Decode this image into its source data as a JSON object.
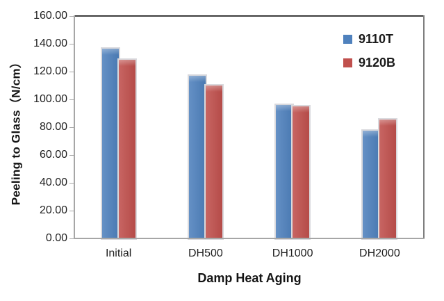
{
  "chart_data": {
    "type": "bar",
    "title": "",
    "categories": [
      "Initial",
      "DH500",
      "DH1000",
      "DH2000"
    ],
    "series": [
      {
        "name": "9110T",
        "color": "#4f81bd",
        "values": [
          136.5,
          117.0,
          96.0,
          77.5
        ]
      },
      {
        "name": "9120B",
        "color": "#c0504d",
        "values": [
          128.5,
          110.0,
          95.0,
          85.5
        ]
      }
    ],
    "xlabel": "Damp Heat Aging",
    "ylabel": "Peeling to Glass（N/cm）",
    "ylim": [
      0,
      160
    ],
    "ytick_step": 20,
    "ytick_labels": [
      "160.00",
      "140.00",
      "120.00",
      "100.00",
      "80.00",
      "60.00",
      "40.00",
      "20.00",
      "0.00"
    ],
    "grid": false,
    "legend_position": "top-right-inside",
    "colors": {
      "plot_border_top": "#3d3d3d",
      "plot_border_right": "#7f7f7f",
      "axis": "#a6a6a6",
      "text": "#1f1f1f"
    }
  }
}
